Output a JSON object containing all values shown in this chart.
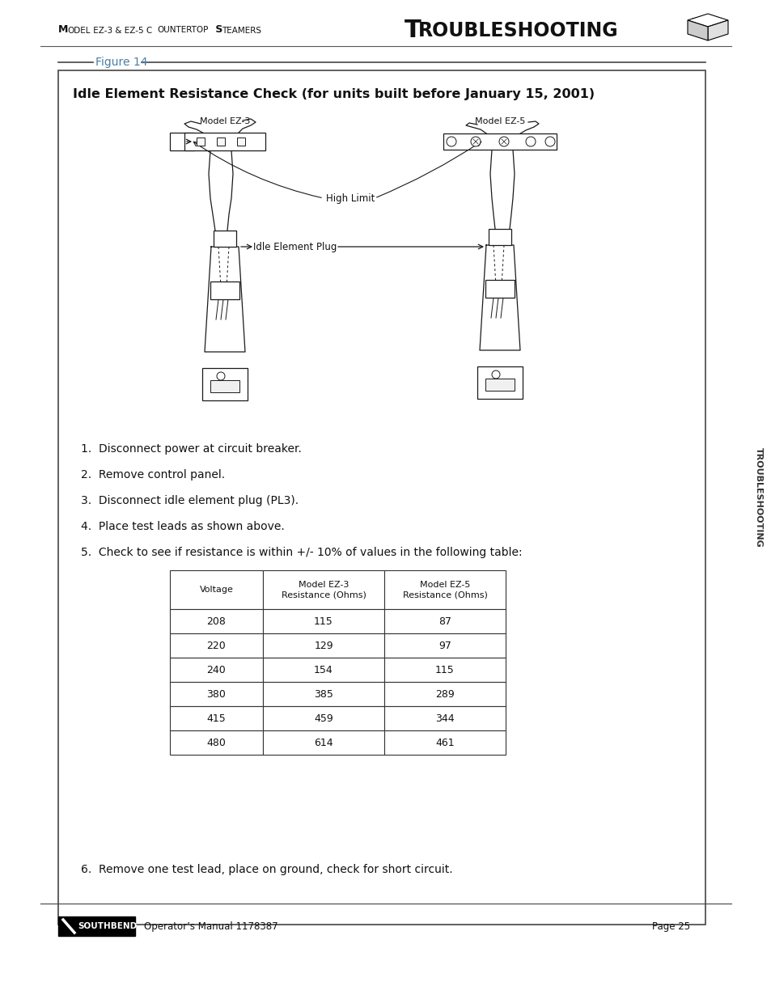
{
  "page_bg": "#ffffff",
  "header_left": "Model EZ-3 & EZ-5 Countertop Steamers",
  "header_right": "Troubleshooting",
  "figure_label": "Figure 14",
  "figure_label_color": "#4a7fa5",
  "box_title": "Idle Element Resistance Check (for units built before January 15, 2001)",
  "label_ez3": "Model EZ-3",
  "label_ez5": "Model EZ-5",
  "label_high_limit": "High Limit",
  "label_idle_plug": "Idle Element Plug",
  "instructions": [
    "1.  Disconnect power at circuit breaker.",
    "2.  Remove control panel.",
    "3.  Disconnect idle element plug (PL3).",
    "4.  Place test leads as shown above.",
    "5.  Check to see if resistance is within +/- 10% of values in the following table:"
  ],
  "table_headers": [
    "Voltage",
    "Model EZ-3\nResistance (Ohms)",
    "Model EZ-5\nResistance (Ohms)"
  ],
  "table_data": [
    [
      "208",
      "115",
      "87"
    ],
    [
      "220",
      "129",
      "97"
    ],
    [
      "240",
      "154",
      "115"
    ],
    [
      "380",
      "385",
      "289"
    ],
    [
      "415",
      "459",
      "344"
    ],
    [
      "480",
      "614",
      "461"
    ]
  ],
  "footer_note": "6.  Remove one test lead, place on ground, check for short circuit.",
  "footer_manual": "Operator’s Manual 1178387",
  "footer_page": "Page 25",
  "sidebar_text": "TROUBLESHOOTING"
}
